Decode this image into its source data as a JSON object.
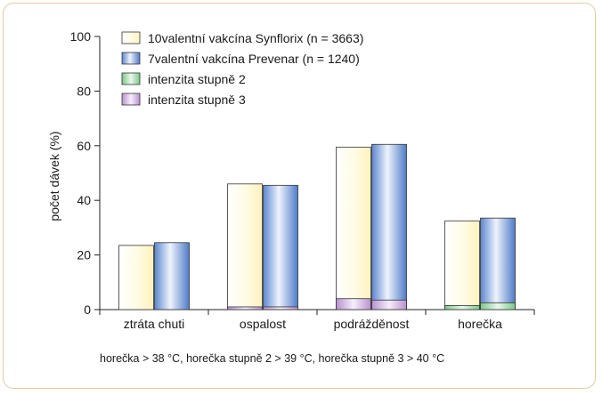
{
  "chart_data": {
    "type": "bar",
    "title": "",
    "ylabel": "počet dávek (%)",
    "xlabel": "",
    "ylim": [
      0,
      100
    ],
    "yticks": [
      0,
      20,
      40,
      60,
      80,
      100
    ],
    "categories": [
      "ztráta chuti",
      "ospalost",
      "podrážděnost",
      "horečka"
    ],
    "series": [
      {
        "name": "10valentní vakcína Synflorix (n = 3663)",
        "values": [
          23.5,
          46,
          59.5,
          32.5
        ],
        "color": "#fffbe0"
      },
      {
        "name": "7valentní vakcína Prevenar (n = 1240)",
        "values": [
          24.5,
          45.5,
          60.5,
          33.5
        ],
        "color": "#6f93d4"
      }
    ],
    "grade3_by_series": [
      {
        "legend_name": "intenzita stupně 3",
        "values": [
          0,
          1,
          4,
          0
        ],
        "color": "#c9a7da"
      },
      {
        "legend_name": "intenzita stupně 3",
        "values": [
          0,
          1,
          3.5,
          0
        ],
        "color": "#c9a7da"
      }
    ],
    "grade2_by_series": [
      {
        "legend_name": "intenzita stupně 2",
        "values": [
          0,
          0,
          0,
          1.5
        ],
        "color": "#8fd19a"
      },
      {
        "legend_name": "intenzita stupně 2",
        "values": [
          0,
          0,
          0,
          2.5
        ],
        "color": "#8fd19a"
      }
    ],
    "legend": [
      {
        "label": "10valentní vakcína Synflorix (n = 3663)",
        "color": "#fffbe0"
      },
      {
        "label": "7valentní vakcína Prevenar (n = 1240)",
        "color": "#6f93d4"
      },
      {
        "label": "intenzita stupně 2",
        "color": "#8fd19a"
      },
      {
        "label": "intenzita stupně 3",
        "color": "#c9a7da"
      }
    ],
    "legend_position": "top-left",
    "grid": false,
    "footnote": "horečka > 38 °C, horečka stupně 2 > 39 °C, horečka stupně 3 > 40 °C"
  }
}
